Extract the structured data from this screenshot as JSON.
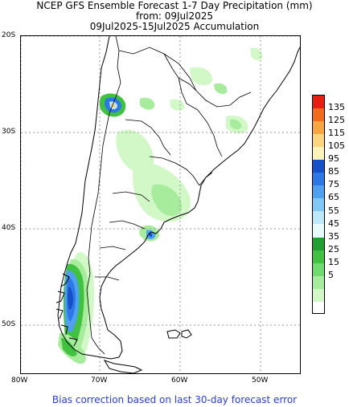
{
  "header": {
    "title": "NCEP GFS Ensemble Forecast 1-7 Day Precipitation (mm)",
    "from_line": "from: 09Jul2025",
    "accum_line": "09Jul2025-15Jul2025 Accumulation"
  },
  "map": {
    "lat_labels": [
      "20S",
      "30S",
      "40S",
      "50S"
    ],
    "lon_labels": [
      "80W",
      "70W",
      "60W",
      "50W"
    ]
  },
  "legend": {
    "colors": [
      "#e81e10",
      "#f36a1a",
      "#f8a640",
      "#fcd57c",
      "#fdf2b8",
      "#1650c8",
      "#2c78e6",
      "#4ea0f0",
      "#80c8f6",
      "#bde8fa",
      "#e8fbfc",
      "#20a030",
      "#40c240",
      "#70dc70",
      "#a6ec9c",
      "#d2f8c8",
      "#ffffff"
    ],
    "labels": [
      "135",
      "125",
      "115",
      "105",
      "95",
      "85",
      "75",
      "65",
      "55",
      "45",
      "35",
      "25",
      "15",
      "5"
    ]
  },
  "footer": {
    "note": "Bias correction based on last 30-day forecast error"
  }
}
